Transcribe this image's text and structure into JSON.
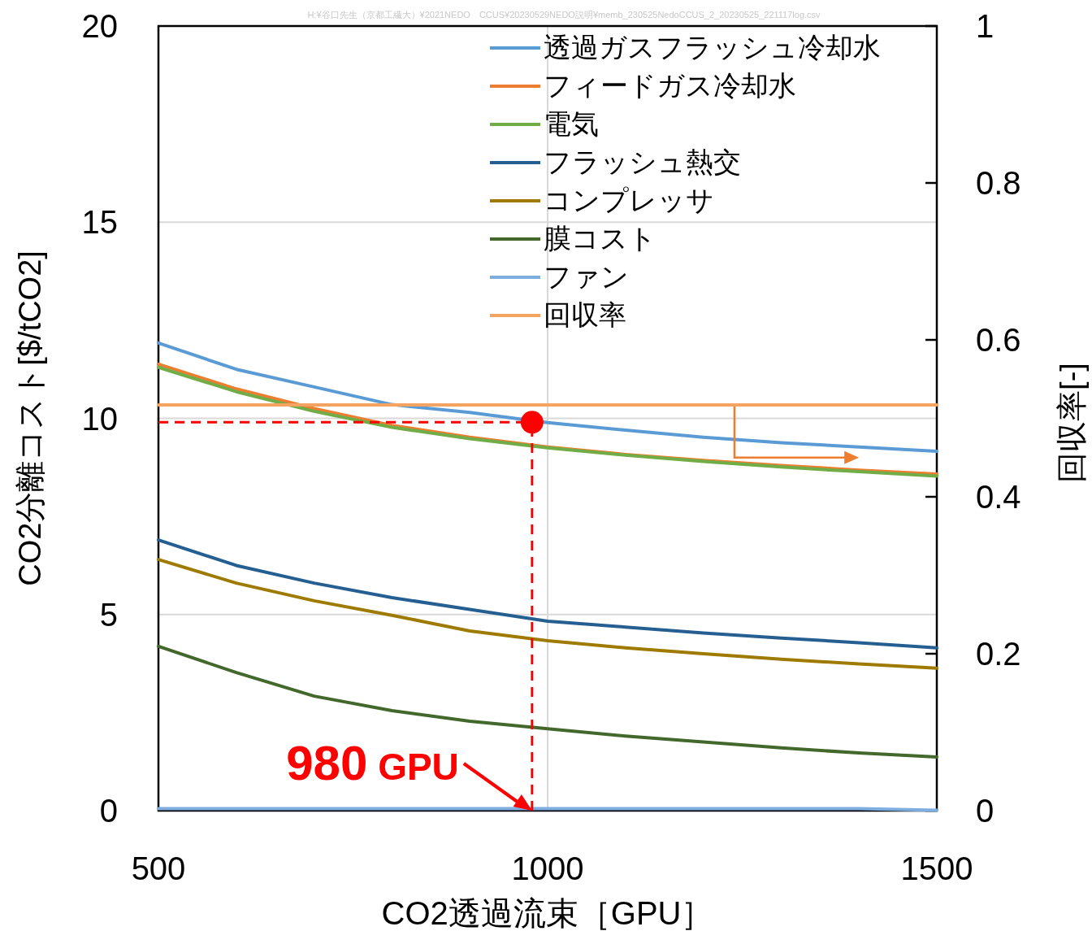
{
  "chart_data": {
    "type": "line",
    "xlabel": "CO2透過流束［GPU］",
    "ylabel": "CO2分離コスト[$/tCO2]",
    "y2label": "回収率[-]",
    "x": [
      500,
      600,
      700,
      800,
      900,
      1000,
      1100,
      1200,
      1300,
      1400,
      1500
    ],
    "xlim": [
      500,
      1500
    ],
    "xticks": [
      500,
      1000,
      1500
    ],
    "ylim": [
      0,
      20
    ],
    "yticks": [
      0,
      5,
      10,
      15,
      20
    ],
    "y2lim": [
      0,
      1
    ],
    "y2ticks": [
      0,
      0.2,
      0.4,
      0.6,
      0.8,
      1
    ],
    "grid": true,
    "legend": "top right",
    "ref_lines": [
      {
        "axis": "y",
        "value": 9.9,
        "color": "#ff0000",
        "line_style": "dashed"
      },
      {
        "axis": "x",
        "value": 980,
        "color": "#ff0000",
        "line_style": "dashed"
      }
    ],
    "annotations": [
      {
        "text": "980 GPU",
        "x": 980,
        "y": 0
      },
      "H:¥谷口先生（京都工繊大）¥2021NEDO　CCUS¥20230529NEDO説明¥memb_230525NedoCCUS_2_20230525_221117log.csv"
    ],
    "series": [
      {
        "name": "透過ガスフラッシュ冷却水",
        "color": "#5b9bd5",
        "values": [
          11.92,
          11.25,
          10.8,
          10.35,
          10.15,
          9.89,
          9.7,
          9.52,
          9.38,
          9.27,
          9.16
        ]
      },
      {
        "name": "フィードガス冷却水",
        "color": "#ed7d31",
        "values": [
          11.38,
          10.75,
          10.25,
          9.82,
          9.52,
          9.27,
          9.08,
          8.93,
          8.8,
          8.68,
          8.58
        ]
      },
      {
        "name": "電気",
        "color": "#70ad47",
        "values": [
          11.3,
          10.68,
          10.18,
          9.77,
          9.48,
          9.25,
          9.06,
          8.9,
          8.76,
          8.64,
          8.53
        ]
      },
      {
        "name": "フラッシュ熱交",
        "color": "#255e91",
        "values": [
          6.9,
          6.25,
          5.8,
          5.43,
          5.13,
          4.83,
          4.68,
          4.53,
          4.4,
          4.28,
          4.15
        ]
      },
      {
        "name": "コンプレッサ",
        "color": "#9e7b00",
        "values": [
          6.4,
          5.8,
          5.35,
          4.98,
          4.58,
          4.33,
          4.15,
          4.0,
          3.86,
          3.74,
          3.63
        ]
      },
      {
        "name": "膜コスト",
        "color": "#43682b",
        "values": [
          4.19,
          3.52,
          2.92,
          2.55,
          2.28,
          2.09,
          1.9,
          1.75,
          1.6,
          1.47,
          1.37
        ]
      },
      {
        "name": "ファン",
        "color": "#7eaee0",
        "values": [
          0.05,
          0.05,
          0.05,
          0.05,
          0.05,
          0.05,
          0.05,
          0.05,
          0.05,
          0.05,
          0.01
        ]
      },
      {
        "name": "回収率",
        "color": "#f4a460",
        "axis": "y2",
        "values": [
          0.517,
          0.517,
          0.517,
          0.517,
          0.517,
          0.517,
          0.517,
          0.517,
          0.517,
          0.517,
          0.517
        ]
      },
      {
        "type": "scatter",
        "color": "#ff0000",
        "marker": "circle",
        "x": [
          980
        ],
        "values": [
          9.9
        ]
      }
    ]
  }
}
